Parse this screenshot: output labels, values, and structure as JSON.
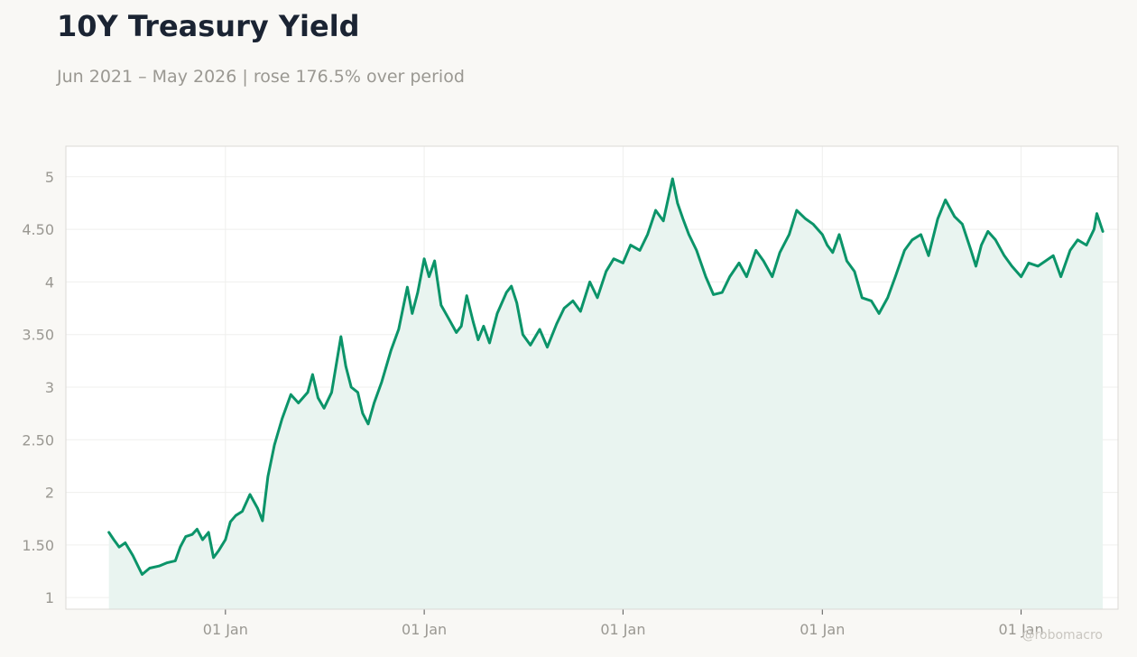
{
  "header": {
    "title": "10Y Treasury Yield",
    "subtitle": "Jun 2021 – May 2026 | rose 176.5% over period"
  },
  "watermark": "@robomacro",
  "colors": {
    "line": "#0b9469",
    "area": "#e9f4f0",
    "grid": "#efefed",
    "frame": "#dcdad6",
    "background": "#f9f8f5",
    "plot_background": "#ffffff"
  },
  "chart_data": {
    "type": "area",
    "title": "10Y Treasury Yield",
    "subtitle": "Jun 2021 – May 2026 | rose 176.5% over period",
    "xlabel": "",
    "ylabel": "",
    "grid": true,
    "legend": "none",
    "ylim": [
      0.89,
      5.29
    ],
    "xlim": [
      "2021-03-14",
      "2026-06-28"
    ],
    "y_ticks": [
      1,
      1.5,
      2,
      2.5,
      3,
      3.5,
      4,
      4.5,
      5
    ],
    "y_tick_labels": [
      "1",
      "1.50",
      "2",
      "2.50",
      "3",
      "3.50",
      "4",
      "4.50",
      "5"
    ],
    "x_ticks": [
      "2022-01-01",
      "2023-01-01",
      "2024-01-01",
      "2025-01-01",
      "2026-01-01"
    ],
    "x_tick_labels": [
      "01 Jan",
      "01 Jan",
      "01 Jan",
      "01 Jan",
      "01 Jan"
    ],
    "series": [
      {
        "values": [
          [
            "2021-06-01",
            1.62
          ],
          [
            "2021-06-10",
            1.55
          ],
          [
            "2021-06-20",
            1.48
          ],
          [
            "2021-07-01",
            1.52
          ],
          [
            "2021-07-15",
            1.4
          ],
          [
            "2021-08-01",
            1.22
          ],
          [
            "2021-08-15",
            1.28
          ],
          [
            "2021-09-01",
            1.3
          ],
          [
            "2021-09-15",
            1.33
          ],
          [
            "2021-10-01",
            1.35
          ],
          [
            "2021-10-10",
            1.48
          ],
          [
            "2021-10-20",
            1.58
          ],
          [
            "2021-11-01",
            1.6
          ],
          [
            "2021-11-10",
            1.65
          ],
          [
            "2021-11-20",
            1.55
          ],
          [
            "2021-12-01",
            1.62
          ],
          [
            "2021-12-10",
            1.38
          ],
          [
            "2021-12-20",
            1.45
          ],
          [
            "2022-01-01",
            1.55
          ],
          [
            "2022-01-10",
            1.72
          ],
          [
            "2022-01-20",
            1.78
          ],
          [
            "2022-02-01",
            1.82
          ],
          [
            "2022-02-15",
            1.98
          ],
          [
            "2022-03-01",
            1.85
          ],
          [
            "2022-03-10",
            1.73
          ],
          [
            "2022-03-20",
            2.15
          ],
          [
            "2022-04-01",
            2.45
          ],
          [
            "2022-04-15",
            2.7
          ],
          [
            "2022-05-01",
            2.93
          ],
          [
            "2022-05-15",
            2.85
          ],
          [
            "2022-06-01",
            2.95
          ],
          [
            "2022-06-10",
            3.12
          ],
          [
            "2022-06-20",
            2.9
          ],
          [
            "2022-07-01",
            2.8
          ],
          [
            "2022-07-15",
            2.95
          ],
          [
            "2022-08-01",
            3.48
          ],
          [
            "2022-08-10",
            3.2
          ],
          [
            "2022-08-20",
            3.0
          ],
          [
            "2022-09-01",
            2.95
          ],
          [
            "2022-09-10",
            2.75
          ],
          [
            "2022-09-20",
            2.65
          ],
          [
            "2022-10-01",
            2.85
          ],
          [
            "2022-10-15",
            3.05
          ],
          [
            "2022-11-01",
            3.35
          ],
          [
            "2022-11-15",
            3.55
          ],
          [
            "2022-12-01",
            3.95
          ],
          [
            "2022-12-10",
            3.7
          ],
          [
            "2022-12-20",
            3.9
          ],
          [
            "2023-01-01",
            4.22
          ],
          [
            "2023-01-10",
            4.05
          ],
          [
            "2023-01-20",
            4.2
          ],
          [
            "2023-02-01",
            3.78
          ],
          [
            "2023-02-15",
            3.65
          ],
          [
            "2023-03-01",
            3.52
          ],
          [
            "2023-03-10",
            3.58
          ],
          [
            "2023-03-20",
            3.87
          ],
          [
            "2023-04-01",
            3.62
          ],
          [
            "2023-04-10",
            3.45
          ],
          [
            "2023-04-20",
            3.58
          ],
          [
            "2023-05-01",
            3.42
          ],
          [
            "2023-05-15",
            3.7
          ],
          [
            "2023-06-01",
            3.9
          ],
          [
            "2023-06-10",
            3.96
          ],
          [
            "2023-06-20",
            3.8
          ],
          [
            "2023-07-01",
            3.5
          ],
          [
            "2023-07-15",
            3.4
          ],
          [
            "2023-08-01",
            3.55
          ],
          [
            "2023-08-15",
            3.38
          ],
          [
            "2023-09-01",
            3.6
          ],
          [
            "2023-09-15",
            3.75
          ],
          [
            "2023-10-01",
            3.82
          ],
          [
            "2023-10-15",
            3.72
          ],
          [
            "2023-11-01",
            4.0
          ],
          [
            "2023-11-15",
            3.85
          ],
          [
            "2023-12-01",
            4.1
          ],
          [
            "2023-12-15",
            4.22
          ],
          [
            "2024-01-01",
            4.18
          ],
          [
            "2024-01-15",
            4.35
          ],
          [
            "2024-02-01",
            4.3
          ],
          [
            "2024-02-15",
            4.45
          ],
          [
            "2024-03-01",
            4.68
          ],
          [
            "2024-03-15",
            4.58
          ],
          [
            "2024-04-01",
            4.98
          ],
          [
            "2024-04-10",
            4.75
          ],
          [
            "2024-04-20",
            4.6
          ],
          [
            "2024-05-01",
            4.45
          ],
          [
            "2024-05-15",
            4.3
          ],
          [
            "2024-06-01",
            4.05
          ],
          [
            "2024-06-15",
            3.88
          ],
          [
            "2024-07-01",
            3.9
          ],
          [
            "2024-07-15",
            4.05
          ],
          [
            "2024-08-01",
            4.18
          ],
          [
            "2024-08-15",
            4.05
          ],
          [
            "2024-09-01",
            4.3
          ],
          [
            "2024-09-15",
            4.2
          ],
          [
            "2024-10-01",
            4.05
          ],
          [
            "2024-10-15",
            4.28
          ],
          [
            "2024-11-01",
            4.45
          ],
          [
            "2024-11-15",
            4.68
          ],
          [
            "2024-12-01",
            4.6
          ],
          [
            "2024-12-15",
            4.55
          ],
          [
            "2025-01-01",
            4.45
          ],
          [
            "2025-01-10",
            4.35
          ],
          [
            "2025-01-20",
            4.28
          ],
          [
            "2025-02-01",
            4.45
          ],
          [
            "2025-02-15",
            4.2
          ],
          [
            "2025-03-01",
            4.1
          ],
          [
            "2025-03-15",
            3.85
          ],
          [
            "2025-04-01",
            3.82
          ],
          [
            "2025-04-15",
            3.7
          ],
          [
            "2025-05-01",
            3.85
          ],
          [
            "2025-05-15",
            4.05
          ],
          [
            "2025-06-01",
            4.3
          ],
          [
            "2025-06-15",
            4.4
          ],
          [
            "2025-07-01",
            4.45
          ],
          [
            "2025-07-15",
            4.25
          ],
          [
            "2025-08-01",
            4.6
          ],
          [
            "2025-08-15",
            4.78
          ],
          [
            "2025-09-01",
            4.62
          ],
          [
            "2025-09-15",
            4.55
          ],
          [
            "2025-10-01",
            4.3
          ],
          [
            "2025-10-10",
            4.15
          ],
          [
            "2025-10-20",
            4.35
          ],
          [
            "2025-11-01",
            4.48
          ],
          [
            "2025-11-15",
            4.4
          ],
          [
            "2025-12-01",
            4.25
          ],
          [
            "2025-12-15",
            4.15
          ],
          [
            "2026-01-01",
            4.05
          ],
          [
            "2026-01-15",
            4.18
          ],
          [
            "2026-02-01",
            4.15
          ],
          [
            "2026-02-15",
            4.2
          ],
          [
            "2026-03-01",
            4.25
          ],
          [
            "2026-03-15",
            4.05
          ],
          [
            "2026-04-01",
            4.3
          ],
          [
            "2026-04-15",
            4.4
          ],
          [
            "2026-05-01",
            4.35
          ],
          [
            "2026-05-15",
            4.5
          ],
          [
            "2026-05-20",
            4.65
          ],
          [
            "2026-05-31",
            4.48
          ]
        ]
      }
    ]
  }
}
